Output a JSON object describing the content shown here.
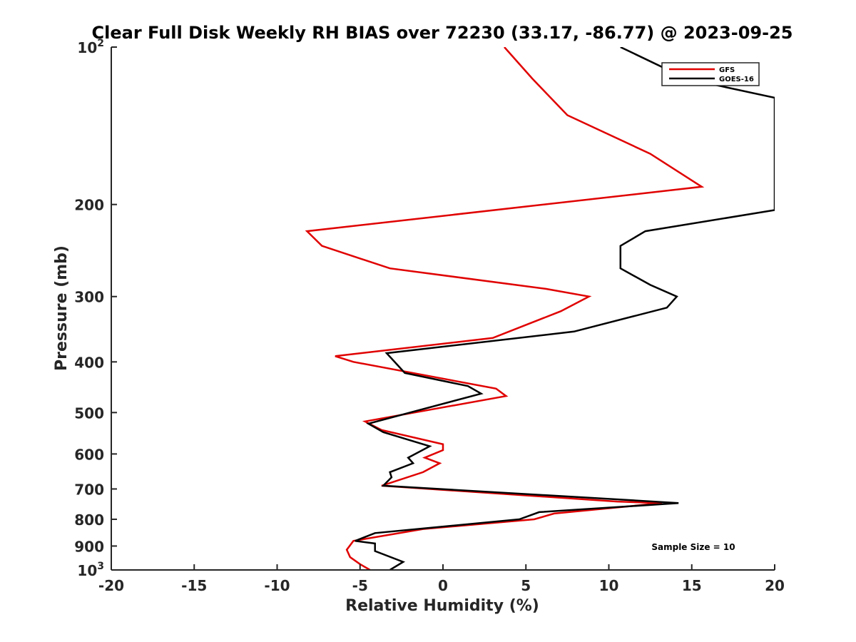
{
  "chart_data": {
    "type": "line",
    "title": "Clear Full Disk Weekly RH BIAS over 72230 (33.17, -86.77) @ 2023-09-25",
    "xlabel": "Relative Humidity (%)",
    "ylabel": "Pressure (mb)",
    "xlim": [
      -20,
      20
    ],
    "ylim": [
      100,
      1000
    ],
    "y_scale": "log",
    "y_reversed": true,
    "grid": false,
    "legend_position": "top-right",
    "x_ticks": [
      -20,
      -15,
      -10,
      -5,
      0,
      5,
      10,
      15,
      20
    ],
    "x_tick_labels": [
      "-20",
      "-15",
      "-10",
      "-5",
      "0",
      "5",
      "10",
      "15",
      "20"
    ],
    "y_ticks": [
      100,
      200,
      300,
      400,
      500,
      600,
      700,
      800,
      900,
      1000
    ],
    "y_tick_labels": [
      "10²",
      "200",
      "300",
      "400",
      "500",
      "600",
      "700",
      "800",
      "900",
      "10³"
    ],
    "annotation": "Sample Size = 10",
    "series": [
      {
        "name": "GFS",
        "color": "#e00000",
        "points": [
          [
            3.7,
            100
          ],
          [
            5.4,
            115
          ],
          [
            7.5,
            135
          ],
          [
            12.5,
            160
          ],
          [
            15.6,
            185
          ],
          [
            -8.2,
            225
          ],
          [
            -7.3,
            240
          ],
          [
            -3.2,
            265
          ],
          [
            6.2,
            290
          ],
          [
            8.8,
            300
          ],
          [
            7.1,
            320
          ],
          [
            3.0,
            360
          ],
          [
            -6.5,
            390
          ],
          [
            -5.4,
            400
          ],
          [
            3.2,
            450
          ],
          [
            3.8,
            465
          ],
          [
            -4.7,
            520
          ],
          [
            -3.7,
            540
          ],
          [
            0.0,
            575
          ],
          [
            0.0,
            590
          ],
          [
            -1.1,
            610
          ],
          [
            -0.2,
            625
          ],
          [
            -1.2,
            650
          ],
          [
            -3.7,
            690
          ],
          [
            10.5,
            740
          ],
          [
            13.2,
            745
          ],
          [
            6.7,
            780
          ],
          [
            5.5,
            800
          ],
          [
            -1.2,
            835
          ],
          [
            -5.4,
            880
          ],
          [
            -5.8,
            915
          ],
          [
            -5.6,
            945
          ],
          [
            -5.0,
            975
          ],
          [
            -4.4,
            1000
          ]
        ]
      },
      {
        "name": "GOES-16",
        "color": "#000000",
        "points": [
          [
            10.7,
            100
          ],
          [
            14.7,
            115
          ],
          [
            20.0,
            125
          ],
          [
            20.0,
            205
          ],
          [
            12.2,
            225
          ],
          [
            10.7,
            240
          ],
          [
            10.7,
            265
          ],
          [
            12.5,
            285
          ],
          [
            14.1,
            300
          ],
          [
            13.5,
            315
          ],
          [
            7.9,
            350
          ],
          [
            -3.4,
            385
          ],
          [
            -2.3,
            420
          ],
          [
            1.5,
            445
          ],
          [
            2.3,
            460
          ],
          [
            -4.5,
            525
          ],
          [
            -3.6,
            545
          ],
          [
            -0.8,
            580
          ],
          [
            -2.1,
            610
          ],
          [
            -1.8,
            625
          ],
          [
            -3.2,
            650
          ],
          [
            -3.1,
            665
          ],
          [
            -3.6,
            690
          ],
          [
            11.2,
            735
          ],
          [
            14.2,
            745
          ],
          [
            5.8,
            775
          ],
          [
            4.6,
            800
          ],
          [
            -4.1,
            850
          ],
          [
            -5.3,
            880
          ],
          [
            -4.1,
            890
          ],
          [
            -4.1,
            920
          ],
          [
            -2.4,
            965
          ],
          [
            -3.2,
            1000
          ]
        ]
      }
    ]
  }
}
